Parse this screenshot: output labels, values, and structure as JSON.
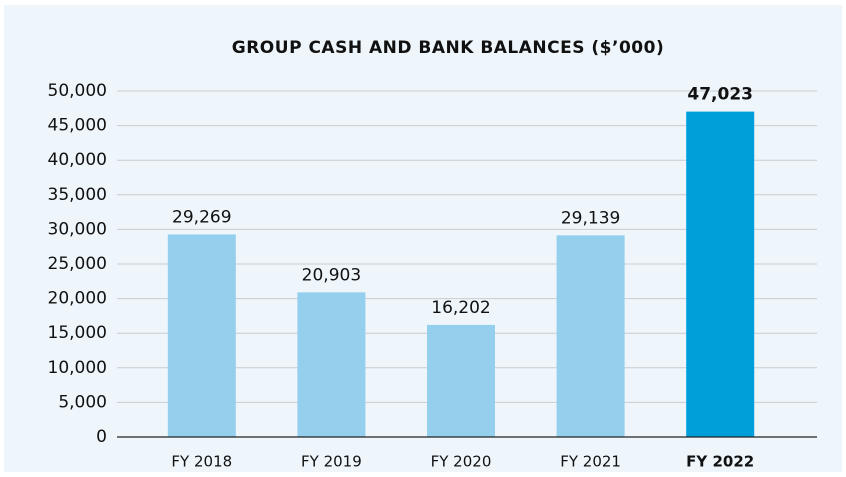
{
  "chart_data": {
    "type": "bar",
    "title": "GROUP CASH AND BANK BALANCES ($’000)",
    "categories": [
      "FY 2018",
      "FY 2019",
      "FY 2020",
      "FY 2021",
      "FY 2022"
    ],
    "values": [
      29269,
      20903,
      16202,
      29139,
      47023
    ],
    "value_labels": [
      "29,269",
      "20,903",
      "16,202",
      "29,139",
      "47,023"
    ],
    "colors": [
      "#94cfee",
      "#94cfee",
      "#94cfee",
      "#94cfee",
      "#009fda"
    ],
    "highlight_index": 4,
    "ylim": [
      0,
      50000
    ],
    "yticks": [
      0,
      {
        "value": 5000,
        "label": "5,000"
      },
      {
        "value": 10000,
        "label": "10,000"
      },
      {
        "value": 15000,
        "label": "15,000"
      },
      {
        "value": 20000,
        "label": "20,000"
      },
      {
        "value": 25000,
        "label": "25,000"
      },
      {
        "value": 30000,
        "label": "30,000"
      },
      {
        "value": 35000,
        "label": "35,000"
      },
      {
        "value": 40000,
        "label": "40,000"
      },
      {
        "value": 45000,
        "label": "45,000"
      },
      {
        "value": 50000,
        "label": "50,000"
      }
    ],
    "grid": true
  }
}
